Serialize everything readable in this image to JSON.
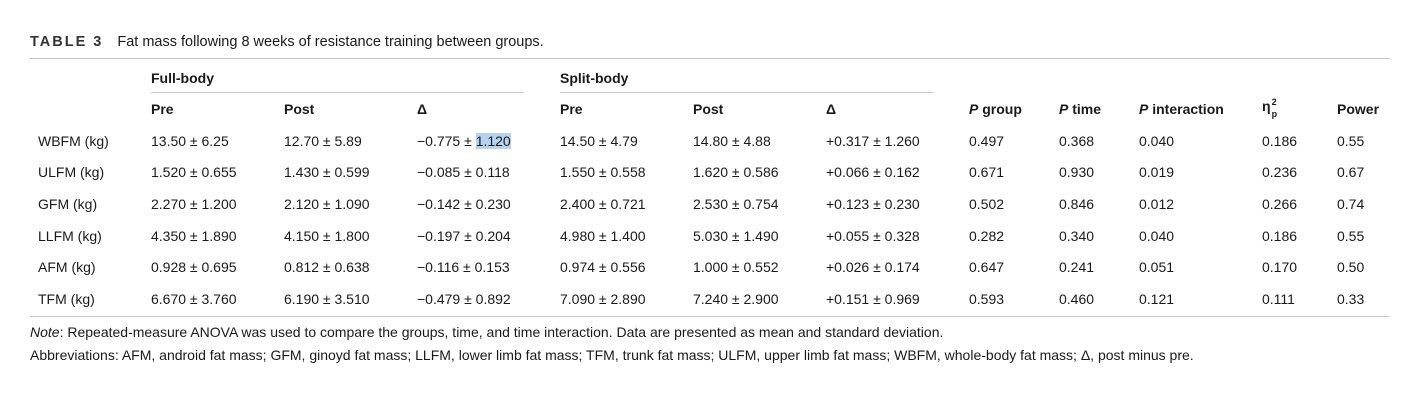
{
  "caption": {
    "label": "TABLE 3",
    "title": "Fat mass following 8 weeks of resistance training between groups."
  },
  "groups": [
    "Full-body",
    "Split-body"
  ],
  "headers": {
    "full_pre": "Pre",
    "full_post": "Post",
    "full_delta": "Δ",
    "split_pre": "Pre",
    "split_post": "Post",
    "split_delta": "Δ",
    "p_group_p": "P",
    "p_group_rest": " group",
    "p_time_p": "P",
    "p_time_rest": " time",
    "p_inter_p": "P",
    "p_inter_rest": " interaction",
    "eta": "η",
    "eta_sup": "2",
    "eta_sub": "p",
    "power": "Power"
  },
  "rows": [
    [
      "WBFM (kg)",
      "13.50 ± 6.25",
      "12.70 ± 5.89",
      "−0.775 ± ",
      "1.120",
      "14.50 ± 4.79",
      "14.80 ± 4.88",
      "+0.317 ± 1.260",
      "0.497",
      "0.368",
      "0.040",
      "0.186",
      "0.55"
    ],
    [
      "ULFM (kg)",
      "1.520 ± 0.655",
      "1.430 ± 0.599",
      "−0.085 ± 0.118",
      "",
      "1.550 ± 0.558",
      "1.620 ± 0.586",
      "+0.066 ± 0.162",
      "0.671",
      "0.930",
      "0.019",
      "0.236",
      "0.67"
    ],
    [
      "GFM (kg)",
      "2.270 ± 1.200",
      "2.120 ± 1.090",
      "−0.142 ± 0.230",
      "",
      "2.400 ± 0.721",
      "2.530 ± 0.754",
      "+0.123 ± 0.230",
      "0.502",
      "0.846",
      "0.012",
      "0.266",
      "0.74"
    ],
    [
      "LLFM (kg)",
      "4.350 ± 1.890",
      "4.150 ± 1.800",
      "−0.197 ± 0.204",
      "",
      "4.980 ± 1.400",
      "5.030 ± 1.490",
      "+0.055 ± 0.328",
      "0.282",
      "0.340",
      "0.040",
      "0.186",
      "0.55"
    ],
    [
      "AFM (kg)",
      "0.928 ± 0.695",
      "0.812 ± 0.638",
      "−0.116 ± 0.153",
      "",
      "0.974 ± 0.556",
      "1.000 ± 0.552",
      "+0.026 ± 0.174",
      "0.647",
      "0.241",
      "0.051",
      "0.170",
      "0.50"
    ],
    [
      "TFM (kg)",
      "6.670 ± 3.760",
      "6.190 ± 3.510",
      "−0.479 ± 0.892",
      "",
      "7.090 ± 2.890",
      "7.240 ± 2.900",
      "+0.151 ± 0.969",
      "0.593",
      "0.460",
      "0.121",
      "0.111",
      "0.33"
    ]
  ],
  "notes": {
    "note_label": "Note",
    "note_text": ": Repeated-measure ANOVA was used to compare the groups, time, and time interaction. Data are presented as mean and standard deviation.",
    "abbreviations": "Abbreviations: AFM, android fat mass; GFM, ginoyd fat mass; LLFM, lower limb fat mass; TFM, trunk fat mass; ULFM, upper limb fat mass; WBFM, whole-body fat mass; Δ, post minus pre."
  }
}
